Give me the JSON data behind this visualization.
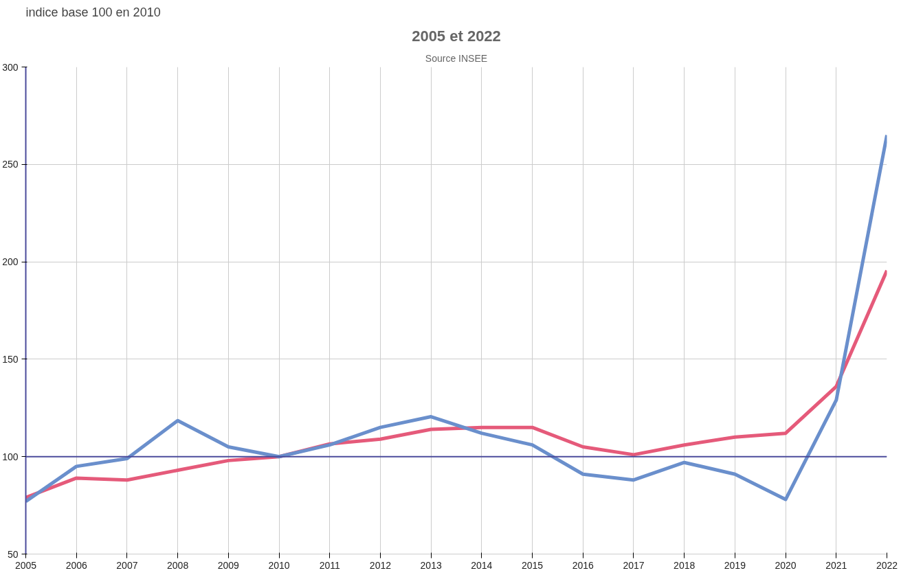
{
  "chart_data": {
    "type": "line",
    "title": "2005 et 2022",
    "ylabel": "indice base 100 en 2010",
    "annotations": [
      "Source INSEE"
    ],
    "x": [
      2005,
      2006,
      2007,
      2008,
      2009,
      2010,
      2011,
      2012,
      2013,
      2014,
      2015,
      2016,
      2017,
      2018,
      2019,
      2020,
      2021,
      2022
    ],
    "series": [
      {
        "color": "#e55a7a",
        "values": [
          79,
          89,
          88,
          93,
          98,
          100,
          106.5,
          109,
          114,
          115,
          115,
          105,
          101,
          106,
          110,
          112,
          136,
          195.5
        ]
      },
      {
        "color": "#6a8fcc",
        "values": [
          77,
          95,
          99,
          118.5,
          105,
          100,
          106,
          115,
          120.5,
          112,
          106,
          91,
          88,
          97,
          91,
          78,
          129,
          265
        ]
      }
    ],
    "xlim": [
      2005,
      2022
    ],
    "xticks": [
      2005,
      2006,
      2007,
      2008,
      2009,
      2010,
      2011,
      2012,
      2013,
      2014,
      2015,
      2016,
      2017,
      2018,
      2019,
      2020,
      2021,
      2022
    ],
    "ylim": [
      50,
      300
    ],
    "yticks": [
      50,
      100,
      150,
      200,
      250,
      300
    ],
    "ref_lines": [
      {
        "axis": "y",
        "value": 100,
        "color": "#4b4b9b"
      }
    ],
    "grid": true,
    "marker": "none",
    "line_style": "solid"
  }
}
